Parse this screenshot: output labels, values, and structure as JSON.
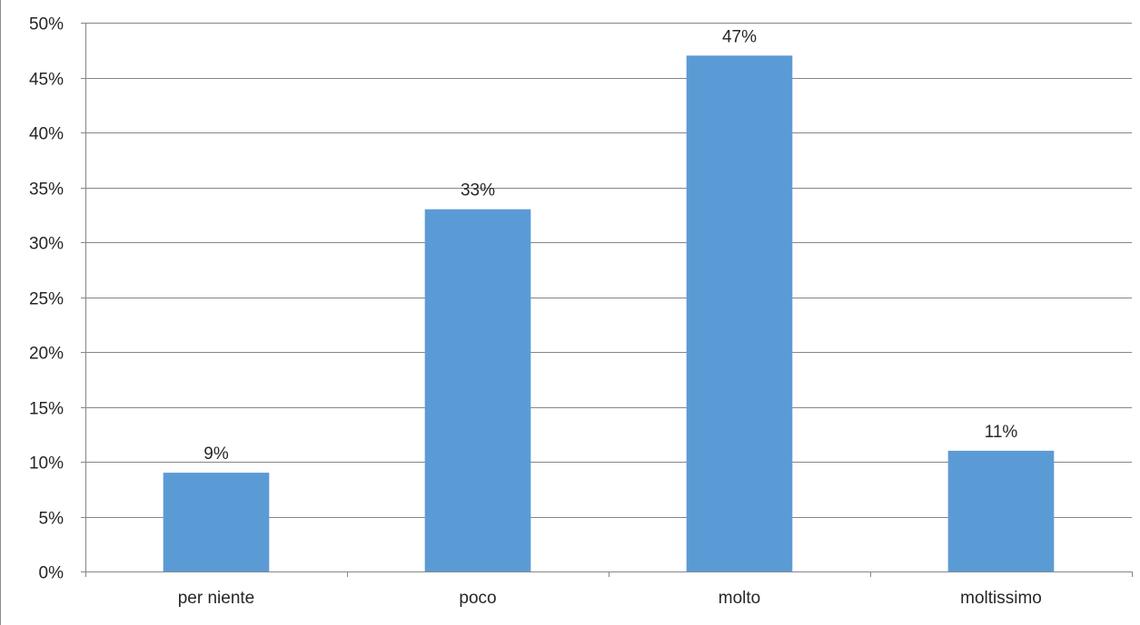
{
  "chart_data": {
    "type": "bar",
    "categories": [
      "per niente",
      "poco",
      "molto",
      "moltissimo"
    ],
    "values": [
      9,
      33,
      47,
      11
    ],
    "value_labels": [
      "9%",
      "33%",
      "47%",
      "11%"
    ],
    "ylim": [
      0,
      50
    ],
    "y_ticks": [
      0,
      5,
      10,
      15,
      20,
      25,
      30,
      35,
      40,
      45,
      50
    ],
    "y_tick_labels": [
      "0%",
      "5%",
      "10%",
      "15%",
      "20%",
      "25%",
      "30%",
      "35%",
      "40%",
      "45%",
      "50%"
    ],
    "title": "",
    "xlabel": "",
    "ylabel": "",
    "grid": true,
    "legend": "none"
  },
  "colors": {
    "bar": "#5b9bd5",
    "gridline": "#868686",
    "axis": "#868686"
  }
}
